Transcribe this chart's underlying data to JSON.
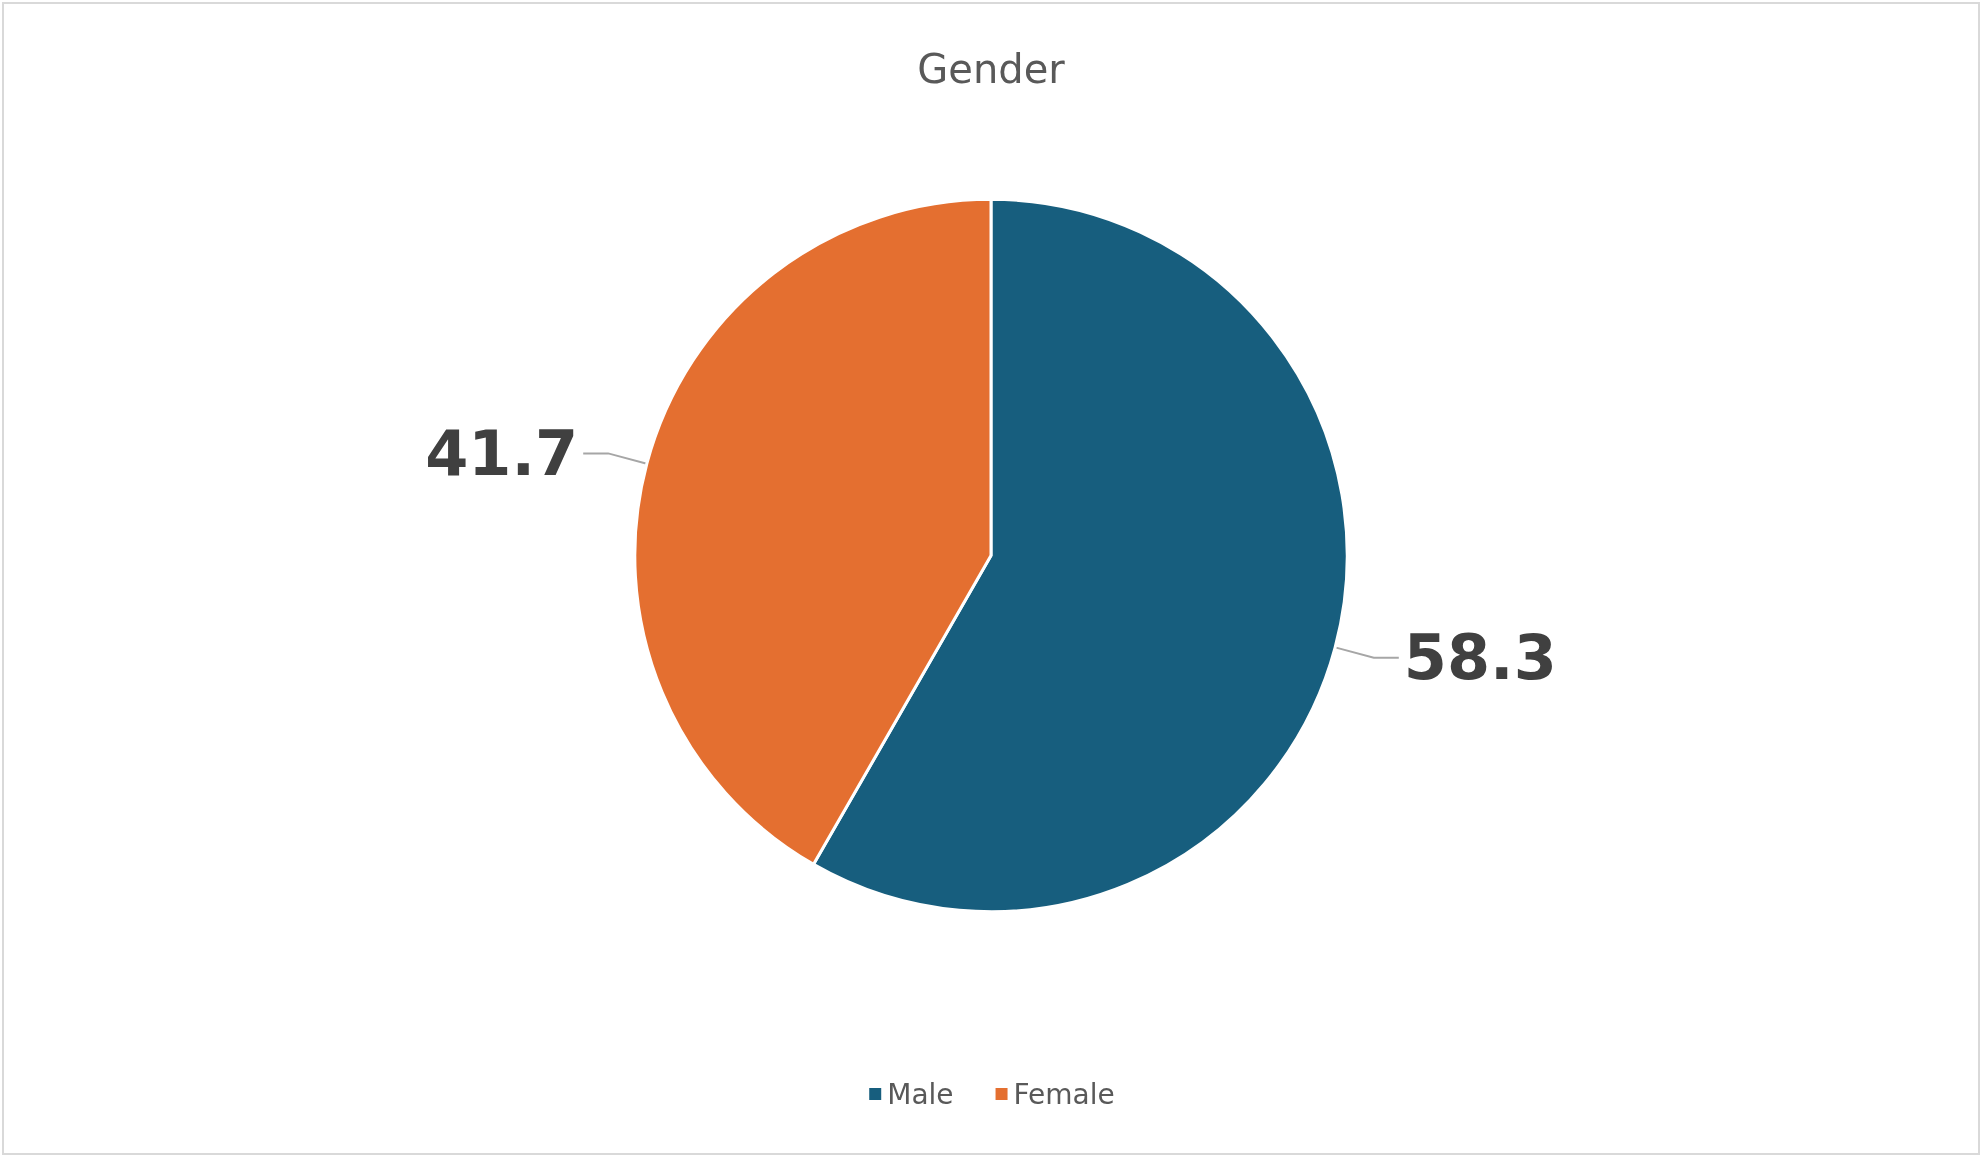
{
  "chart_data": {
    "type": "pie",
    "title": "Gender",
    "categories": [
      "Male",
      "Female"
    ],
    "values": [
      58.3,
      41.7
    ],
    "colors": [
      "#175e7e",
      "#e46f30"
    ],
    "data_labels": true,
    "legend": "bottom"
  }
}
